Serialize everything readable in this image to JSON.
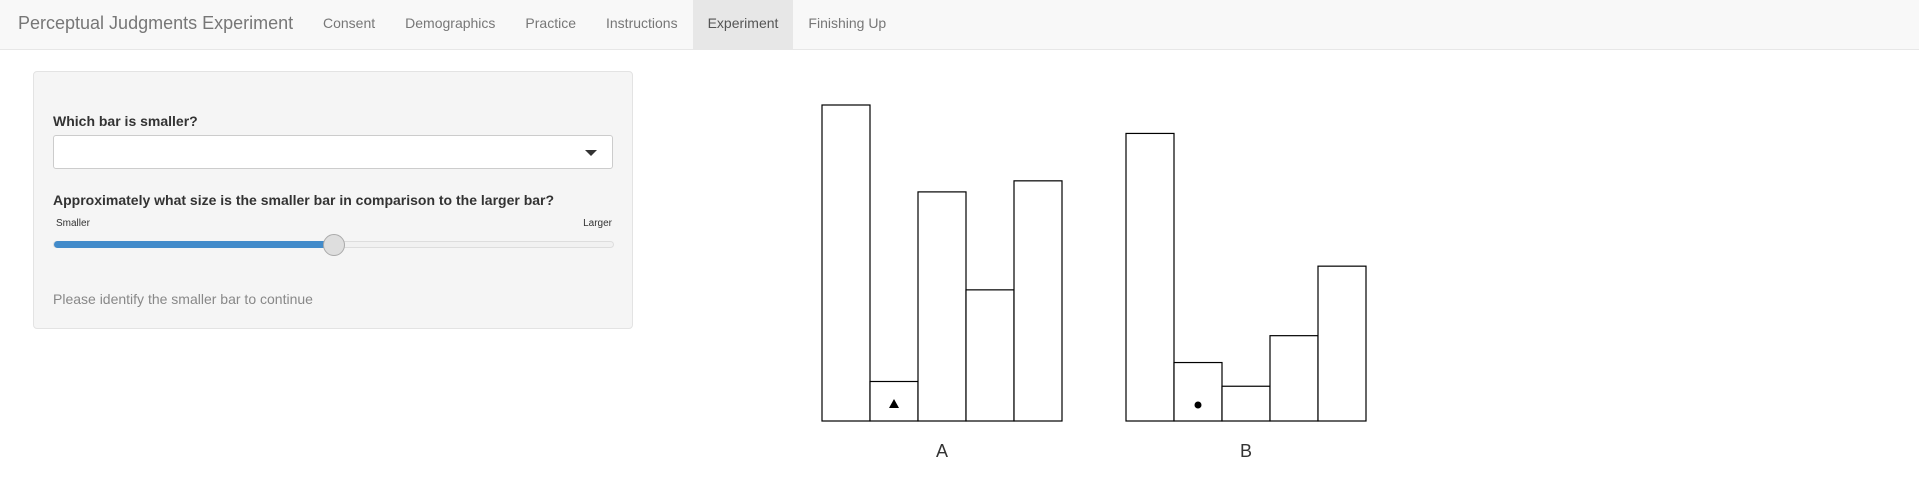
{
  "app": {
    "title": "Perceptual Judgments Experiment",
    "nav_tabs": [
      {
        "label": "Consent",
        "active": false
      },
      {
        "label": "Demographics",
        "active": false
      },
      {
        "label": "Practice",
        "active": false
      },
      {
        "label": "Instructions",
        "active": false
      },
      {
        "label": "Experiment",
        "active": true
      },
      {
        "label": "Finishing Up",
        "active": false
      }
    ]
  },
  "form": {
    "question1": "Which bar is smaller?",
    "select_value": "",
    "question2": "Approximately what size is the smaller bar in comparison to the larger bar?",
    "slider": {
      "min_label": "Smaller",
      "max_label": "Larger",
      "value": 0.5
    },
    "status_message": "Please identify the smaller bar to continue"
  },
  "chart_data": {
    "type": "bar",
    "ylim": [
      0,
      100
    ],
    "groups": [
      {
        "label": "A",
        "values": [
          100,
          12.5,
          72.5,
          41.5,
          76
        ],
        "marked_index": 1,
        "marker": "triangle"
      },
      {
        "label": "B",
        "values": [
          91,
          18.5,
          11,
          27,
          49
        ],
        "marked_index": 1,
        "marker": "circle"
      }
    ],
    "colors": {
      "bar_fill": "#ffffff",
      "bar_stroke": "#000000",
      "accent": "#428bca"
    }
  }
}
